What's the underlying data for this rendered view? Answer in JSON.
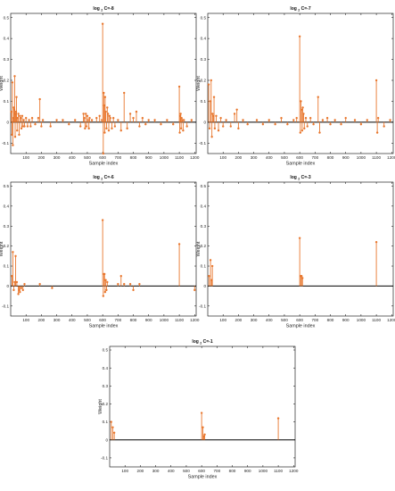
{
  "figure": {
    "background": "#ffffff",
    "stem_color": "#e8772e",
    "baseline_color": "#000000"
  },
  "chart_data": [
    {
      "type": "stem",
      "title": {
        "prefix": "log",
        "sub": "2",
        "suffix": "C=-8"
      },
      "xlabel": "Sample index",
      "ylabel": "Weight",
      "xlim": [
        0,
        1210
      ],
      "ylim": [
        -0.15,
        0.52
      ],
      "xticks": [
        100,
        200,
        300,
        400,
        500,
        600,
        700,
        800,
        900,
        1000,
        1100,
        1200
      ],
      "yticks": [
        -0.1,
        0,
        0.1,
        0.2,
        0.3,
        0.4,
        0.5
      ],
      "ytick_labels": [
        "-0.1",
        "0",
        "0.1",
        "0.2",
        "0.3",
        "0.4",
        "0.5"
      ],
      "points": [
        [
          4,
          0.05
        ],
        [
          8,
          -0.06
        ],
        [
          11,
          0.19
        ],
        [
          14,
          -0.11
        ],
        [
          17,
          0.02
        ],
        [
          20,
          0.07
        ],
        [
          23,
          0.06
        ],
        [
          26,
          0.22
        ],
        [
          29,
          -0.07
        ],
        [
          32,
          0.04
        ],
        [
          35,
          0.05
        ],
        [
          38,
          0.12
        ],
        [
          42,
          -0.04
        ],
        [
          45,
          0.02
        ],
        [
          50,
          0.04
        ],
        [
          55,
          -0.06
        ],
        [
          60,
          0.03
        ],
        [
          65,
          0.02
        ],
        [
          70,
          -0.03
        ],
        [
          75,
          0.03
        ],
        [
          80,
          -0.02
        ],
        [
          85,
          0.01
        ],
        [
          90,
          -0.02
        ],
        [
          100,
          0.02
        ],
        [
          110,
          -0.02
        ],
        [
          120,
          0.01
        ],
        [
          130,
          -0.02
        ],
        [
          140,
          0.02
        ],
        [
          160,
          -0.01
        ],
        [
          180,
          0.02
        ],
        [
          190,
          0.11
        ],
        [
          200,
          -0.02
        ],
        [
          210,
          0.01
        ],
        [
          260,
          -0.02
        ],
        [
          300,
          0.01
        ],
        [
          340,
          0.01
        ],
        [
          380,
          -0.01
        ],
        [
          420,
          0.01
        ],
        [
          455,
          -0.02
        ],
        [
          475,
          0.04
        ],
        [
          480,
          0.02
        ],
        [
          485,
          -0.03
        ],
        [
          490,
          0.04
        ],
        [
          495,
          -0.02
        ],
        [
          500,
          0.03
        ],
        [
          505,
          0.01
        ],
        [
          510,
          -0.03
        ],
        [
          515,
          0.02
        ],
        [
          530,
          0.01
        ],
        [
          560,
          0.02
        ],
        [
          580,
          0.03
        ],
        [
          595,
          0.01
        ],
        [
          600,
          0.47
        ],
        [
          604,
          -0.15
        ],
        [
          607,
          0.14
        ],
        [
          610,
          0.08
        ],
        [
          613,
          -0.05
        ],
        [
          616,
          0.12
        ],
        [
          620,
          0.05
        ],
        [
          625,
          -0.03
        ],
        [
          630,
          0.07
        ],
        [
          635,
          0.04
        ],
        [
          640,
          -0.04
        ],
        [
          645,
          0.03
        ],
        [
          650,
          0.02
        ],
        [
          660,
          -0.03
        ],
        [
          670,
          0.02
        ],
        [
          680,
          -0.02
        ],
        [
          700,
          0.01
        ],
        [
          720,
          -0.04
        ],
        [
          740,
          0.14
        ],
        [
          760,
          -0.03
        ],
        [
          780,
          0.04
        ],
        [
          800,
          0.02
        ],
        [
          820,
          0.05
        ],
        [
          840,
          -0.02
        ],
        [
          860,
          0.02
        ],
        [
          880,
          -0.01
        ],
        [
          900,
          0.01
        ],
        [
          940,
          0.01
        ],
        [
          980,
          -0.01
        ],
        [
          1020,
          0.01
        ],
        [
          1060,
          -0.01
        ],
        [
          1100,
          0.17
        ],
        [
          1103,
          -0.05
        ],
        [
          1106,
          0.03
        ],
        [
          1109,
          0.04
        ],
        [
          1112,
          -0.03
        ],
        [
          1115,
          0.02
        ],
        [
          1120,
          0.01
        ],
        [
          1125,
          -0.04
        ],
        [
          1130,
          0.01
        ],
        [
          1150,
          -0.02
        ],
        [
          1180,
          0.01
        ]
      ]
    },
    {
      "type": "stem",
      "title": {
        "prefix": "log",
        "sub": "2",
        "suffix": "C=-7"
      },
      "xlabel": "Sample index",
      "ylabel": "Weight",
      "xlim": [
        0,
        1210
      ],
      "ylim": [
        -0.15,
        0.52
      ],
      "xticks": [
        100,
        200,
        300,
        400,
        500,
        600,
        700,
        800,
        900,
        1000,
        1100,
        1200
      ],
      "yticks": [
        -0.1,
        0,
        0.1,
        0.2,
        0.3,
        0.4,
        0.5
      ],
      "ytick_labels": [
        "-0.1",
        "0",
        "0.1",
        "0.2",
        "0.3",
        "0.4",
        "0.5"
      ],
      "points": [
        [
          6,
          0.18
        ],
        [
          12,
          -0.03
        ],
        [
          18,
          0.1
        ],
        [
          22,
          0.2
        ],
        [
          27,
          -0.07
        ],
        [
          31,
          0.04
        ],
        [
          36,
          0.03
        ],
        [
          41,
          0.12
        ],
        [
          46,
          -0.03
        ],
        [
          55,
          0.03
        ],
        [
          70,
          -0.04
        ],
        [
          85,
          0.02
        ],
        [
          100,
          -0.02
        ],
        [
          120,
          0.01
        ],
        [
          150,
          -0.02
        ],
        [
          175,
          0.04
        ],
        [
          190,
          0.06
        ],
        [
          200,
          -0.03
        ],
        [
          230,
          0.01
        ],
        [
          260,
          -0.01
        ],
        [
          320,
          0.01
        ],
        [
          360,
          -0.01
        ],
        [
          400,
          0.01
        ],
        [
          440,
          -0.01
        ],
        [
          480,
          0.02
        ],
        [
          520,
          -0.01
        ],
        [
          560,
          0.01
        ],
        [
          580,
          0.02
        ],
        [
          600,
          0.41
        ],
        [
          604,
          -0.05
        ],
        [
          608,
          0.1
        ],
        [
          612,
          0.06
        ],
        [
          616,
          -0.04
        ],
        [
          620,
          0.07
        ],
        [
          625,
          0.04
        ],
        [
          630,
          -0.03
        ],
        [
          640,
          0.02
        ],
        [
          650,
          -0.02
        ],
        [
          670,
          0.02
        ],
        [
          690,
          -0.01
        ],
        [
          720,
          0.12
        ],
        [
          730,
          -0.05
        ],
        [
          750,
          0.01
        ],
        [
          780,
          0.02
        ],
        [
          800,
          -0.01
        ],
        [
          830,
          0.01
        ],
        [
          870,
          -0.01
        ],
        [
          900,
          0.02
        ],
        [
          960,
          0.01
        ],
        [
          1000,
          -0.01
        ],
        [
          1040,
          0.01
        ],
        [
          1100,
          0.2
        ],
        [
          1106,
          -0.05
        ],
        [
          1112,
          0.02
        ],
        [
          1150,
          -0.02
        ],
        [
          1190,
          0.01
        ]
      ]
    },
    {
      "type": "stem",
      "title": {
        "prefix": "log",
        "sub": "2",
        "suffix": "C=-6"
      },
      "xlabel": "Sample index",
      "ylabel": "Weight",
      "xlim": [
        0,
        1210
      ],
      "ylim": [
        -0.15,
        0.52
      ],
      "xticks": [
        100,
        200,
        300,
        400,
        500,
        600,
        700,
        800,
        900,
        1000,
        1100,
        1200
      ],
      "yticks": [
        -0.1,
        0,
        0.1,
        0.2,
        0.3,
        0.4,
        0.5
      ],
      "ytick_labels": [
        "-0.1",
        "0",
        "0.1",
        "0.2",
        "0.3",
        "0.4",
        "0.5"
      ],
      "points": [
        [
          8,
          0.05
        ],
        [
          14,
          0.17
        ],
        [
          20,
          -0.02
        ],
        [
          26,
          0.02
        ],
        [
          32,
          0.15
        ],
        [
          40,
          0.02
        ],
        [
          50,
          -0.04
        ],
        [
          55,
          -0.02
        ],
        [
          60,
          -0.03
        ],
        [
          70,
          -0.01
        ],
        [
          80,
          -0.02
        ],
        [
          90,
          0.01
        ],
        [
          190,
          0.01
        ],
        [
          270,
          -0.01
        ],
        [
          600,
          0.33
        ],
        [
          604,
          -0.05
        ],
        [
          608,
          0.06
        ],
        [
          612,
          0.06
        ],
        [
          616,
          -0.03
        ],
        [
          620,
          0.03
        ],
        [
          625,
          -0.02
        ],
        [
          630,
          0.02
        ],
        [
          700,
          0.01
        ],
        [
          720,
          0.05
        ],
        [
          740,
          0.01
        ],
        [
          780,
          0.01
        ],
        [
          800,
          -0.02
        ],
        [
          840,
          0.01
        ],
        [
          1100,
          0.21
        ],
        [
          1200,
          -0.02
        ]
      ]
    },
    {
      "type": "stem",
      "title": {
        "prefix": "log",
        "sub": "2",
        "suffix": "C=-3"
      },
      "xlabel": "Sample index",
      "ylabel": "Weight",
      "xlim": [
        0,
        1210
      ],
      "ylim": [
        -0.15,
        0.52
      ],
      "xticks": [
        100,
        200,
        300,
        400,
        500,
        600,
        700,
        800,
        900,
        1000,
        1100,
        1200
      ],
      "yticks": [
        -0.1,
        0,
        0.1,
        0.2,
        0.3,
        0.4,
        0.5
      ],
      "ytick_labels": [
        "-0.1",
        "0",
        "0.1",
        "0.2",
        "0.3",
        "0.4",
        "0.5"
      ],
      "points": [
        [
          8,
          0.05
        ],
        [
          18,
          0.13
        ],
        [
          24,
          0.03
        ],
        [
          30,
          0.1
        ],
        [
          600,
          0.24
        ],
        [
          606,
          0.05
        ],
        [
          612,
          0.05
        ],
        [
          618,
          0.04
        ],
        [
          1100,
          0.22
        ]
      ]
    },
    {
      "type": "stem",
      "title": {
        "prefix": "log",
        "sub": "2",
        "suffix": "C=-1"
      },
      "xlabel": "Sample index",
      "ylabel": "Weight",
      "xlim": [
        0,
        1210
      ],
      "ylim": [
        -0.15,
        0.52
      ],
      "xticks": [
        100,
        200,
        300,
        400,
        500,
        600,
        700,
        800,
        900,
        1000,
        1100,
        1200
      ],
      "yticks": [
        -0.1,
        0,
        0.1,
        0.2,
        0.3,
        0.4,
        0.5
      ],
      "ytick_labels": [
        "-0.1",
        "0",
        "0.1",
        "0.2",
        "0.3",
        "0.4",
        "0.5"
      ],
      "points": [
        [
          10,
          0.1
        ],
        [
          20,
          0.07
        ],
        [
          30,
          0.04
        ],
        [
          600,
          0.15
        ],
        [
          608,
          0.07
        ],
        [
          614,
          0.02
        ],
        [
          620,
          0.03
        ],
        [
          1100,
          0.12
        ]
      ]
    }
  ]
}
